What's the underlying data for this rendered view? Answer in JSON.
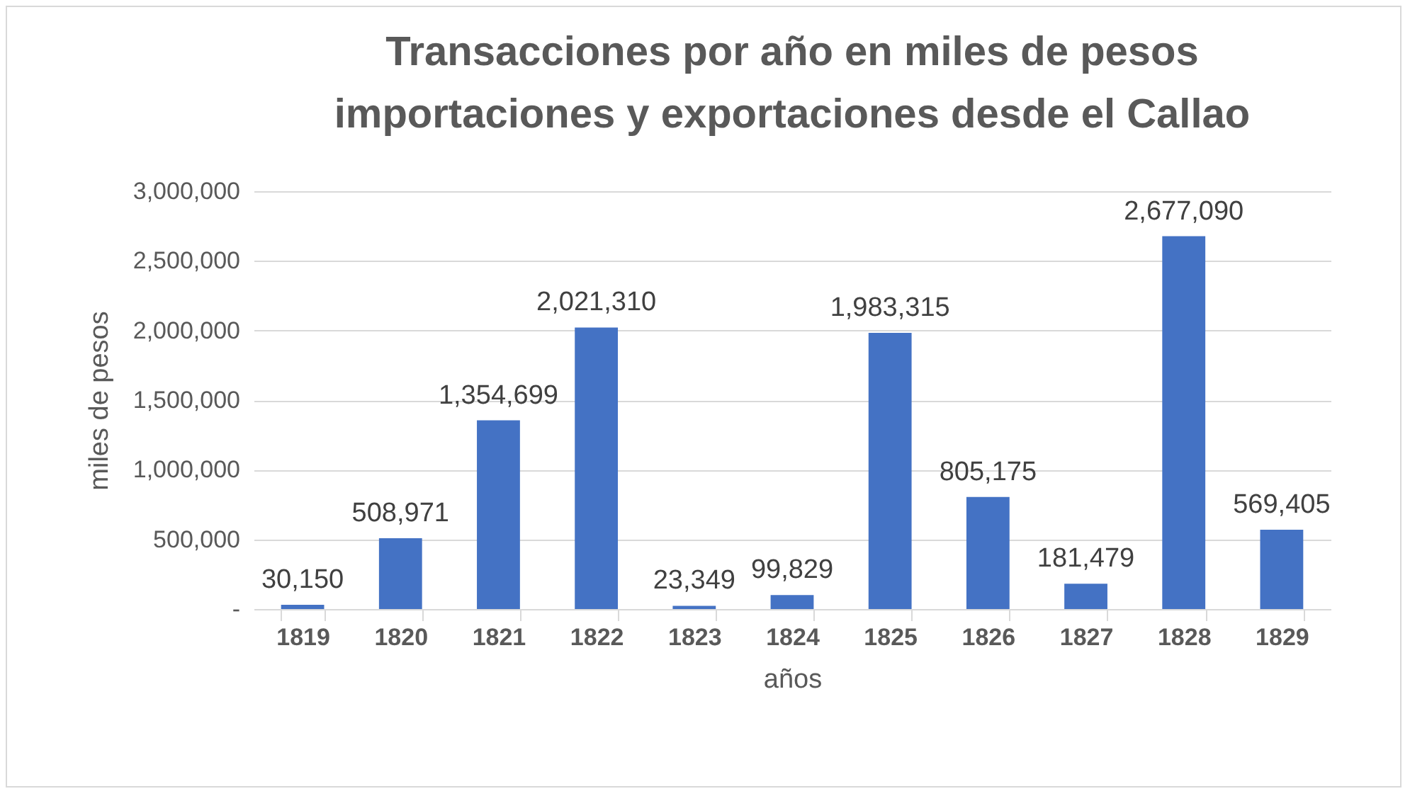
{
  "chart_data": {
    "type": "bar",
    "title": "Transacciones por año en miles de pesos\nimportaciones y exportaciones desde el Callao",
    "xlabel": "años",
    "ylabel": "miles de pesos",
    "categories": [
      "1819",
      "1820",
      "1821",
      "1822",
      "1823",
      "1824",
      "1825",
      "1826",
      "1827",
      "1828",
      "1829"
    ],
    "values": [
      30150,
      508971,
      1354699,
      2021310,
      23349,
      99829,
      1983315,
      805175,
      181479,
      2677090,
      569405
    ],
    "value_labels": [
      "30,150",
      "508,971",
      "1,354,699",
      "2,021,310",
      "23,349",
      "99,829",
      "1,983,315",
      "805,175",
      "181,479",
      "2,677,090",
      "569,405"
    ],
    "color": "#4472c4",
    "ylim": [
      0,
      3000000
    ],
    "yticks": [
      {
        "value": 0,
        "label": "-"
      },
      {
        "value": 500000,
        "label": "500,000"
      },
      {
        "value": 1000000,
        "label": "1,000,000"
      },
      {
        "value": 1500000,
        "label": "1,500,000"
      },
      {
        "value": 2000000,
        "label": "2,000,000"
      },
      {
        "value": 2500000,
        "label": "2,500,000"
      },
      {
        "value": 3000000,
        "label": "3,000,000"
      }
    ],
    "grid": "y"
  }
}
